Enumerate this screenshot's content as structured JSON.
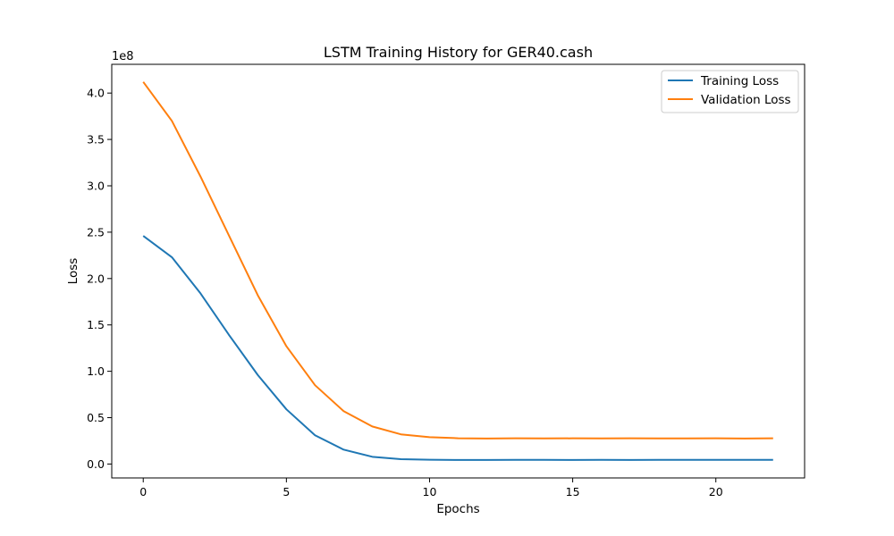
{
  "chart_data": {
    "type": "line",
    "title": "LSTM Training History for GER40.cash",
    "xlabel": "Epochs",
    "ylabel": "Loss",
    "y_offset_label": "1e8",
    "xlim": [
      -1.1,
      23.1
    ],
    "ylim": [
      -15000000,
      431000000
    ],
    "x_ticks": [
      0,
      5,
      10,
      15,
      20
    ],
    "x_tick_labels": [
      "0",
      "5",
      "10",
      "15",
      "20"
    ],
    "y_ticks": [
      0,
      50000000,
      100000000,
      150000000,
      200000000,
      250000000,
      300000000,
      350000000,
      400000000
    ],
    "y_tick_labels": [
      "0.0",
      "0.5",
      "1.0",
      "1.5",
      "2.0",
      "2.5",
      "3.0",
      "3.5",
      "4.0"
    ],
    "grid": false,
    "legend_position": "top-right",
    "x": [
      0,
      1,
      2,
      3,
      4,
      5,
      6,
      7,
      8,
      9,
      10,
      11,
      12,
      13,
      14,
      15,
      16,
      17,
      18,
      19,
      20,
      21,
      22
    ],
    "series": [
      {
        "name": "Training Loss",
        "color": "#1f77b4",
        "values": [
          246000000,
          223000000,
          184000000,
          139000000,
          96000000,
          59000000,
          31000000,
          15500000,
          7800000,
          5200000,
          4600000,
          4400000,
          4400000,
          4500000,
          4500000,
          4400000,
          4500000,
          4400000,
          4500000,
          4500000,
          4500000,
          4500000,
          4500000
        ]
      },
      {
        "name": "Validation Loss",
        "color": "#ff7f0e",
        "values": [
          412000000,
          370000000,
          310000000,
          246000000,
          182000000,
          127000000,
          85000000,
          57000000,
          40500000,
          32000000,
          29000000,
          27800000,
          27500000,
          27800000,
          27600000,
          27700000,
          27600000,
          27700000,
          27600000,
          27600000,
          27800000,
          27500000,
          27700000
        ]
      }
    ]
  }
}
